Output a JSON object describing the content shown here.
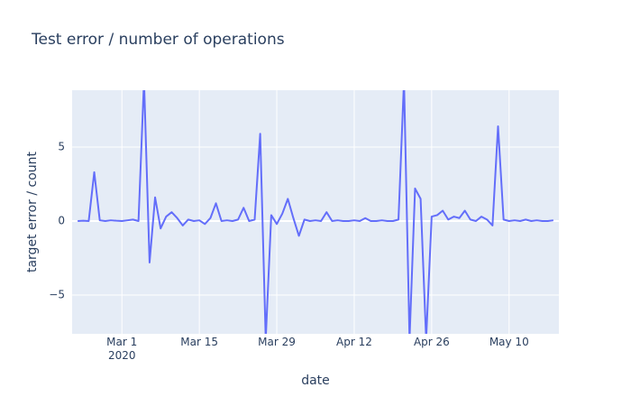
{
  "chart_data": {
    "type": "line",
    "title": "Test error / number of operations",
    "x_label": "date",
    "y_label": "target error / count",
    "color": "#636efa",
    "grid": true,
    "x": [
      "2020-02-22",
      "2020-02-23",
      "2020-02-24",
      "2020-02-25",
      "2020-02-26",
      "2020-02-27",
      "2020-02-28",
      "2020-02-29",
      "2020-03-01",
      "2020-03-02",
      "2020-03-03",
      "2020-03-04",
      "2020-03-05",
      "2020-03-06",
      "2020-03-07",
      "2020-03-08",
      "2020-03-09",
      "2020-03-10",
      "2020-03-11",
      "2020-03-12",
      "2020-03-13",
      "2020-03-14",
      "2020-03-15",
      "2020-03-16",
      "2020-03-17",
      "2020-03-18",
      "2020-03-19",
      "2020-03-20",
      "2020-03-21",
      "2020-03-22",
      "2020-03-23",
      "2020-03-24",
      "2020-03-25",
      "2020-03-26",
      "2020-03-27",
      "2020-03-28",
      "2020-03-29",
      "2020-03-30",
      "2020-03-31",
      "2020-04-01",
      "2020-04-02",
      "2020-04-03",
      "2020-04-04",
      "2020-04-05",
      "2020-04-06",
      "2020-04-07",
      "2020-04-08",
      "2020-04-09",
      "2020-04-10",
      "2020-04-11",
      "2020-04-12",
      "2020-04-13",
      "2020-04-14",
      "2020-04-15",
      "2020-04-16",
      "2020-04-17",
      "2020-04-18",
      "2020-04-19",
      "2020-04-20",
      "2020-04-21",
      "2020-04-22",
      "2020-04-23",
      "2020-04-24",
      "2020-04-25",
      "2020-04-26",
      "2020-04-27",
      "2020-04-28",
      "2020-04-29",
      "2020-04-30",
      "2020-05-01",
      "2020-05-02",
      "2020-05-03",
      "2020-05-04",
      "2020-05-05",
      "2020-05-06",
      "2020-05-07",
      "2020-05-08",
      "2020-05-09",
      "2020-05-10",
      "2020-05-11",
      "2020-05-12",
      "2020-05-13",
      "2020-05-14",
      "2020-05-15",
      "2020-05-16",
      "2020-05-17",
      "2020-05-18"
    ],
    "values": [
      0,
      0.02,
      0,
      3.3,
      0.05,
      0,
      0.05,
      0.02,
      0,
      0.05,
      0.1,
      0,
      9.5,
      -2.8,
      1.6,
      -0.5,
      0.3,
      0.6,
      0.2,
      -0.3,
      0.1,
      0,
      0.05,
      -0.2,
      0.2,
      1.2,
      0,
      0.05,
      0,
      0.1,
      0.9,
      0,
      0.1,
      5.9,
      -8,
      0.4,
      -0.2,
      0.5,
      1.5,
      0.2,
      -1.0,
      0.1,
      0,
      0.05,
      0,
      0.6,
      0,
      0.05,
      0,
      0,
      0.05,
      0,
      0.2,
      0,
      0,
      0.05,
      0,
      0,
      0.1,
      9.5,
      -8,
      2.2,
      1.5,
      -8,
      0.3,
      0.4,
      0.7,
      0.1,
      0.3,
      0.2,
      0.7,
      0.1,
      0,
      0.3,
      0.1,
      -0.3,
      6.4,
      0.1,
      0,
      0.05,
      0,
      0.1,
      0,
      0.05,
      0,
      0,
      0.05
    ],
    "xlim": [
      "2020-02-21",
      "2020-05-19"
    ],
    "xticks": [
      {
        "value": "2020-03-01",
        "label": "Mar 1\n2020"
      },
      {
        "value": "2020-03-15",
        "label": "Mar 15"
      },
      {
        "value": "2020-03-29",
        "label": "Mar 29"
      },
      {
        "value": "2020-04-12",
        "label": "Apr 12"
      },
      {
        "value": "2020-04-26",
        "label": "Apr 26"
      },
      {
        "value": "2020-05-10",
        "label": "May 10"
      }
    ],
    "ylim": [
      -7.62,
      8.84
    ],
    "yticks": [
      {
        "value": -5,
        "label": "−5"
      },
      0,
      5
    ]
  }
}
